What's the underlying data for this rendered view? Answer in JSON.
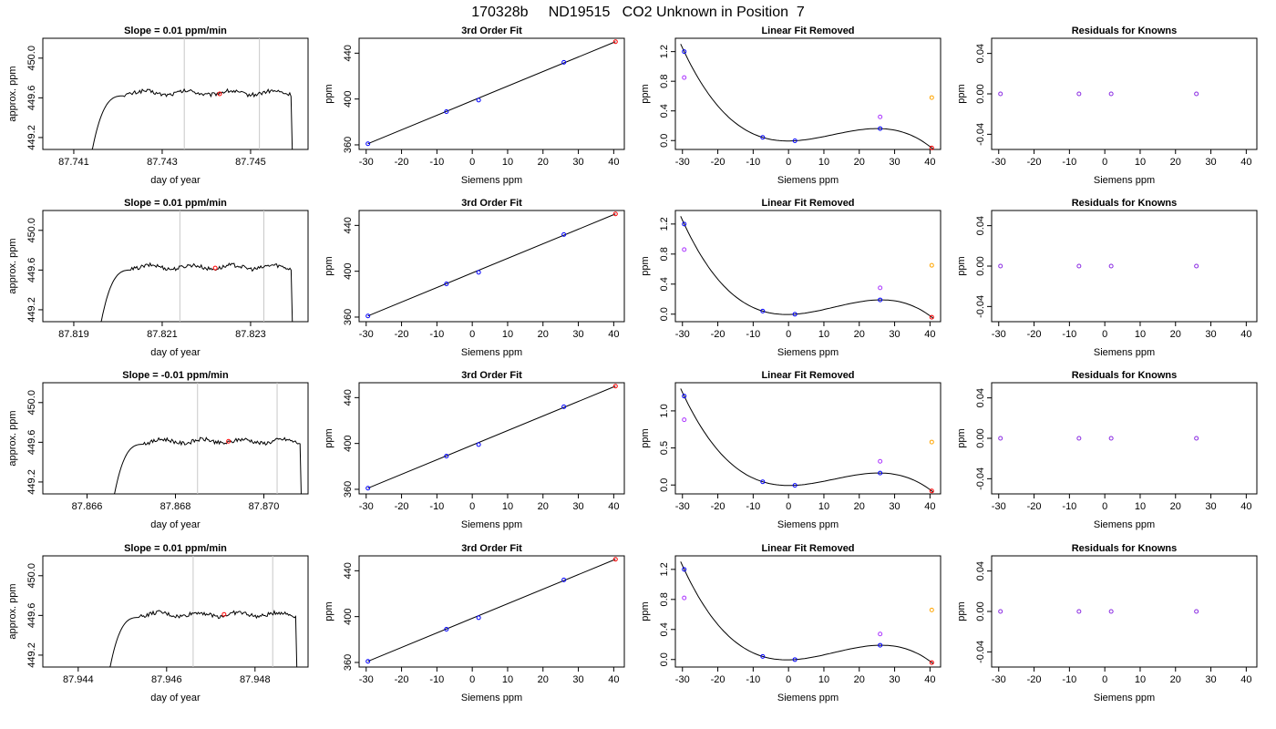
{
  "figure": {
    "title": "170328b     ND19515   CO2 Unknown in Position  7"
  },
  "colors": {
    "axis": "#000000",
    "line": "#000000",
    "vline": "#c8c8c8",
    "blue": "#0000ff",
    "red": "#ff0000",
    "violet": "#aa33ff",
    "orange": "#ffa500",
    "purple": "#8a2be2"
  },
  "rows": [
    {
      "trace": {
        "title": "Slope =  0.01  ppm/min",
        "xlabel": "day of year",
        "ylabel": "approx. ppm",
        "xlim": [
          87.7403,
          87.7463
        ],
        "ylim": [
          449.08,
          450.2
        ],
        "xticks": [
          "87.741",
          "87.743",
          "87.745"
        ],
        "yticks": [
          "449.2",
          "449.6",
          "450.0"
        ],
        "vlines": [
          87.7435,
          87.7452
        ],
        "start": 87.7414,
        "end": 87.746,
        "plateau": 449.65,
        "marker": {
          "x": 87.7443,
          "y": 449.64
        }
      },
      "fit": {
        "title": "3rd Order Fit",
        "xlabel": "Siemens ppm",
        "ylabel": "ppm"
      },
      "linear": {
        "title": "Linear Fit Removed",
        "xlabel": "Siemens ppm",
        "ylabel": "ppm",
        "ylim": [
          -0.12,
          1.38
        ],
        "yticks": [
          "0.0",
          "0.4",
          "0.8",
          "1.2"
        ],
        "violet": [
          0.85,
          0.32
        ],
        "orange": 0.58,
        "x26": 0.16,
        "x40": -0.1
      },
      "resid": {
        "title": "Residuals for Knowns",
        "xlabel": "Siemens ppm",
        "ylabel": "ppm"
      }
    },
    {
      "trace": {
        "title": "Slope =  0.01  ppm/min",
        "xlabel": "day of year",
        "ylabel": "approx. ppm",
        "xlim": [
          87.8183,
          87.8243
        ],
        "ylim": [
          449.08,
          450.2
        ],
        "xticks": [
          "87.819",
          "87.821",
          "87.823"
        ],
        "yticks": [
          "449.2",
          "449.6",
          "450.0"
        ],
        "vlines": [
          87.8214,
          87.8233
        ],
        "start": 87.8196,
        "end": 87.824,
        "plateau": 449.63,
        "marker": {
          "x": 87.8222,
          "y": 449.62
        }
      },
      "fit": {
        "title": "3rd Order Fit",
        "xlabel": "Siemens ppm",
        "ylabel": "ppm"
      },
      "linear": {
        "title": "Linear Fit Removed",
        "xlabel": "Siemens ppm",
        "ylabel": "ppm",
        "ylim": [
          -0.1,
          1.38
        ],
        "yticks": [
          "0.0",
          "0.4",
          "0.8",
          "1.2"
        ],
        "violet": [
          0.86,
          0.35
        ],
        "orange": 0.65,
        "x26": 0.19,
        "x40": -0.04
      },
      "resid": {
        "title": "Residuals for Knowns",
        "xlabel": "Siemens ppm",
        "ylabel": "ppm"
      }
    },
    {
      "trace": {
        "title": "Slope =  -0.01  ppm/min",
        "xlabel": "day of year",
        "ylabel": "approx. ppm",
        "xlim": [
          87.865,
          87.871
        ],
        "ylim": [
          449.08,
          450.2
        ],
        "xticks": [
          "87.866",
          "87.868",
          "87.870"
        ],
        "yticks": [
          "449.2",
          "449.6",
          "450.0"
        ],
        "vlines": [
          87.8685,
          87.8703
        ],
        "start": 87.8666,
        "end": 87.8709,
        "plateau": 449.61,
        "marker": {
          "x": 87.8692,
          "y": 449.61
        }
      },
      "fit": {
        "title": "3rd Order Fit",
        "xlabel": "Siemens ppm",
        "ylabel": "ppm"
      },
      "linear": {
        "title": "Linear Fit Removed",
        "xlabel": "Siemens ppm",
        "ylabel": "ppm",
        "ylim": [
          -0.12,
          1.38
        ],
        "yticks": [
          "0.0",
          "0.5",
          "1.0"
        ],
        "violet": [
          0.88,
          0.32
        ],
        "orange": 0.58,
        "x26": 0.16,
        "x40": -0.08
      },
      "resid": {
        "title": "Residuals for Knowns",
        "xlabel": "Siemens ppm",
        "ylabel": "ppm"
      }
    },
    {
      "trace": {
        "title": "Slope =  0.01  ppm/min",
        "xlabel": "day of year",
        "ylabel": "approx. ppm",
        "xlim": [
          87.9432,
          87.9492
        ],
        "ylim": [
          449.08,
          450.2
        ],
        "xticks": [
          "87.944",
          "87.946",
          "87.948"
        ],
        "yticks": [
          "449.2",
          "449.6",
          "450.0"
        ],
        "vlines": [
          87.9466,
          87.9484
        ],
        "start": 87.9447,
        "end": 87.949,
        "plateau": 449.61,
        "marker": {
          "x": 87.9473,
          "y": 449.61
        }
      },
      "fit": {
        "title": "3rd Order Fit",
        "xlabel": "Siemens ppm",
        "ylabel": "ppm"
      },
      "linear": {
        "title": "Linear Fit Removed",
        "xlabel": "Siemens ppm",
        "ylabel": "ppm",
        "ylim": [
          -0.1,
          1.38
        ],
        "yticks": [
          "0.0",
          "0.4",
          "0.8",
          "1.2"
        ],
        "violet": [
          0.82,
          0.34
        ],
        "orange": 0.66,
        "x26": 0.19,
        "x40": -0.04
      },
      "resid": {
        "title": "Residuals for Knowns",
        "xlabel": "Siemens ppm",
        "ylabel": "ppm"
      }
    }
  ],
  "chart_data": [
    {
      "type": "line",
      "title": "Slope =  0.01  ppm/min (row 1)",
      "xlabel": "day of year",
      "ylabel": "approx. ppm",
      "xlim": [
        87.7403,
        87.7463
      ],
      "ylim": [
        449.08,
        450.2
      ],
      "series": [
        {
          "values": "trace rises from below 449.1 at ~87.7414 to ~449.65, plateau until ~87.7460, then drops"
        }
      ]
    },
    {
      "type": "scatter",
      "title": "3rd Order Fit",
      "xlabel": "Siemens ppm",
      "ylabel": "ppm",
      "xlim": [
        -32,
        43
      ],
      "ylim": [
        356,
        453
      ],
      "x_blue": [
        -29.5,
        -7.3,
        1.8,
        25.9
      ],
      "y_blue": [
        361,
        389,
        399,
        432
      ],
      "x_red": [
        40.5
      ],
      "y_red": [
        450
      ]
    },
    {
      "type": "scatter",
      "title": "Residuals for Knowns",
      "xlabel": "Siemens ppm",
      "ylabel": "ppm",
      "xlim": [
        -32,
        43
      ],
      "ylim": [
        -0.055,
        0.055
      ],
      "yticks": [
        "-0.04",
        "0.00",
        "0.04"
      ],
      "x": [
        -29.5,
        -7.3,
        1.8,
        25.9
      ],
      "y": [
        0,
        0,
        0,
        0
      ]
    }
  ],
  "common": {
    "siemens_xticks": [
      "-30",
      "-20",
      "-10",
      "0",
      "10",
      "20",
      "30",
      "40"
    ],
    "fit_yticks": [
      "360",
      "400",
      "440"
    ],
    "resid_yticks": [
      "-0.04",
      "0.00",
      "0.04"
    ],
    "known_x": [
      -29.5,
      -7.3,
      1.8,
      25.9
    ],
    "unknown_x": 40.5,
    "fit_y": [
      361,
      389,
      399,
      432,
      450
    ],
    "siemens_xlim": [
      -32,
      43
    ],
    "fit_ylim": [
      356,
      453
    ],
    "resid_ylim": [
      -0.055,
      0.055
    ]
  }
}
